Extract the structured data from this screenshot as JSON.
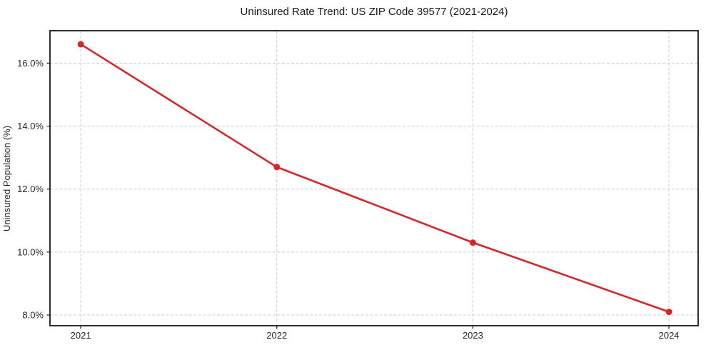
{
  "chart_data": {
    "type": "line",
    "title": "Uninsured Rate Trend: US ZIP Code 39577 (2021-2024)",
    "xlabel": "",
    "ylabel": "Uninsured Population (%)",
    "x": [
      2021,
      2022,
      2023,
      2024
    ],
    "xtick_labels": [
      "2021",
      "2022",
      "2023",
      "2024"
    ],
    "series": [
      {
        "name": "uninsured-rate",
        "values": [
          16.6,
          12.7,
          10.3,
          8.1
        ]
      }
    ],
    "yticks": [
      8.0,
      10.0,
      12.0,
      14.0,
      16.0
    ],
    "ytick_labels": [
      "8.0%",
      "10.0%",
      "12.0%",
      "14.0%",
      "16.0%"
    ],
    "xlim": [
      2020.843,
      2024.149
    ],
    "ylim": [
      7.66,
      17.03
    ],
    "grid": true,
    "grid_style": "dashed",
    "legend_position": "none",
    "colors": {
      "line": "#d62728",
      "marker": "#d62728",
      "grid": "#cccccc",
      "axis": "#1a1a1a",
      "text": "#262626",
      "background": "#ffffff"
    }
  }
}
